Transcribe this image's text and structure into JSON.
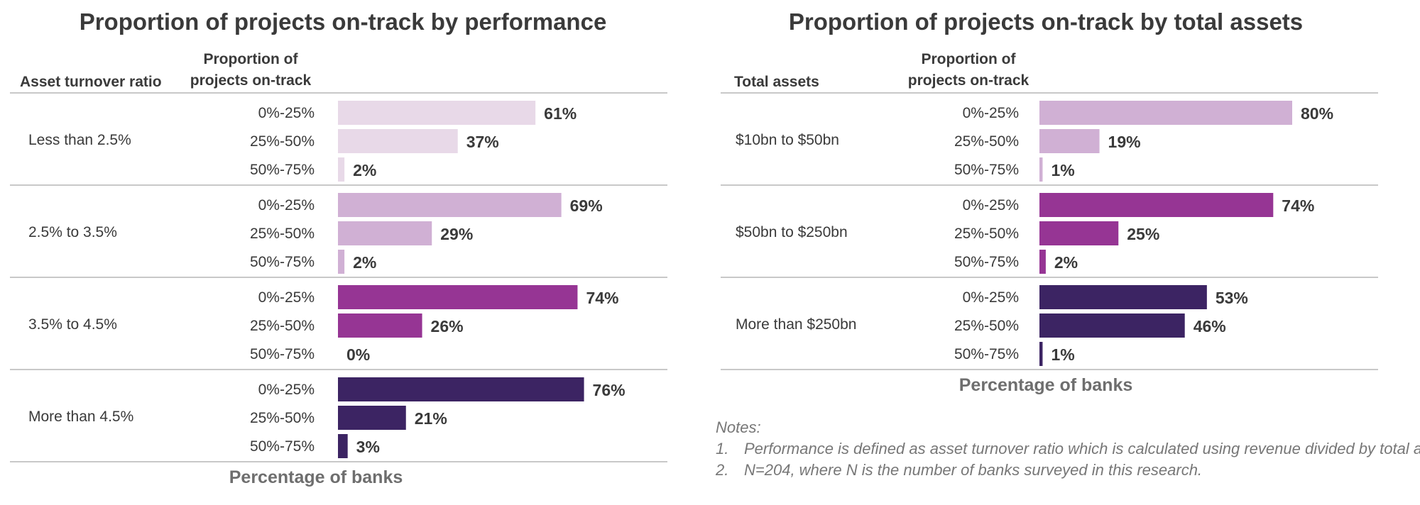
{
  "chart_data": [
    {
      "type": "bar",
      "orientation": "horizontal",
      "title": "Proportion of projects on-track by performance",
      "group_header": "Asset turnover ratio",
      "category_header": [
        "Proportion of",
        "projects on-track"
      ],
      "xlabel": "Percentage of banks",
      "xlim": [
        0,
        100
      ],
      "groups": [
        {
          "label": "Less than 2.5%",
          "color": "#e8d9e8",
          "bars": [
            {
              "category": "0%-25%",
              "value": 61,
              "label": "61%"
            },
            {
              "category": "25%-50%",
              "value": 37,
              "label": "37%"
            },
            {
              "category": "50%-75%",
              "value": 2,
              "label": "2%"
            }
          ]
        },
        {
          "label": "2.5% to 3.5%",
          "color": "#d0b0d4",
          "bars": [
            {
              "category": "0%-25%",
              "value": 69,
              "label": "69%"
            },
            {
              "category": "25%-50%",
              "value": 29,
              "label": "29%"
            },
            {
              "category": "50%-75%",
              "value": 2,
              "label": "2%"
            }
          ]
        },
        {
          "label": "3.5% to 4.5%",
          "color": "#963594",
          "bars": [
            {
              "category": "0%-25%",
              "value": 74,
              "label": "74%"
            },
            {
              "category": "25%-50%",
              "value": 26,
              "label": "26%"
            },
            {
              "category": "50%-75%",
              "value": 0,
              "label": "0%"
            }
          ]
        },
        {
          "label": "More than 4.5%",
          "color": "#3c2463",
          "bars": [
            {
              "category": "0%-25%",
              "value": 76,
              "label": "76%"
            },
            {
              "category": "25%-50%",
              "value": 21,
              "label": "21%"
            },
            {
              "category": "50%-75%",
              "value": 3,
              "label": "3%"
            }
          ]
        }
      ]
    },
    {
      "type": "bar",
      "orientation": "horizontal",
      "title": "Proportion of projects on-track by total assets",
      "group_header": "Total assets",
      "category_header": [
        "Proportion of",
        "projects on-track"
      ],
      "xlabel": "Percentage of banks",
      "xlim": [
        0,
        100
      ],
      "groups": [
        {
          "label": "$10bn to $50bn",
          "color": "#d0b0d4",
          "bars": [
            {
              "category": "0%-25%",
              "value": 80,
              "label": "80%"
            },
            {
              "category": "25%-50%",
              "value": 19,
              "label": "19%"
            },
            {
              "category": "50%-75%",
              "value": 1,
              "label": "1%"
            }
          ]
        },
        {
          "label": "$50bn to $250bn",
          "color": "#963594",
          "bars": [
            {
              "category": "0%-25%",
              "value": 74,
              "label": "74%"
            },
            {
              "category": "25%-50%",
              "value": 25,
              "label": "25%"
            },
            {
              "category": "50%-75%",
              "value": 2,
              "label": "2%"
            }
          ]
        },
        {
          "label": "More than $250bn",
          "color": "#3c2463",
          "bars": [
            {
              "category": "0%-25%",
              "value": 53,
              "label": "53%"
            },
            {
              "category": "25%-50%",
              "value": 46,
              "label": "46%"
            },
            {
              "category": "50%-75%",
              "value": 1,
              "label": "1%"
            }
          ]
        }
      ]
    }
  ],
  "notes": {
    "heading": "Notes:",
    "items": [
      {
        "num": "1.",
        "text": "Performance is defined as asset turnover ratio which is calculated using revenue divided by total assets."
      },
      {
        "num": "2.",
        "text": "N=204, where N is the number of banks surveyed in this research."
      }
    ]
  }
}
